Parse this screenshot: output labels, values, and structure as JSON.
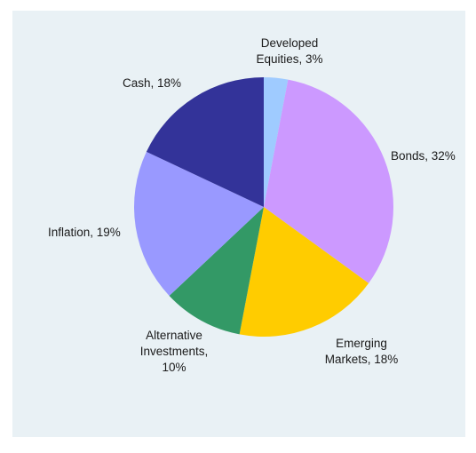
{
  "chart_data": {
    "type": "pie",
    "title": "",
    "slices": [
      {
        "label": "Developed Equities, 3%",
        "lines": [
          "Developed",
          "Equities, 3%"
        ],
        "value": 3,
        "color": "#9fcbff"
      },
      {
        "label": "Bonds, 32%",
        "lines": [
          "Bonds, 32%"
        ],
        "value": 32,
        "color": "#cc99ff"
      },
      {
        "label": "Emerging Markets, 18%",
        "lines": [
          "Emerging",
          "Markets, 18%"
        ],
        "value": 18,
        "color": "#ffcc00"
      },
      {
        "label": "Alternative Investments, 10%",
        "lines": [
          "Alternative",
          "Investments,",
          "10%"
        ],
        "value": 10,
        "color": "#339966"
      },
      {
        "label": "Inflation, 19%",
        "lines": [
          "Inflation, 19%"
        ],
        "value": 19,
        "color": "#9999ff"
      },
      {
        "label": "Cash, 18%",
        "lines": [
          "Cash, 18%"
        ],
        "value": 18,
        "color": "#333399"
      }
    ],
    "start_angle_deg": 0,
    "direction": "clockwise",
    "legend": "none",
    "background": "#e9f1f5"
  }
}
